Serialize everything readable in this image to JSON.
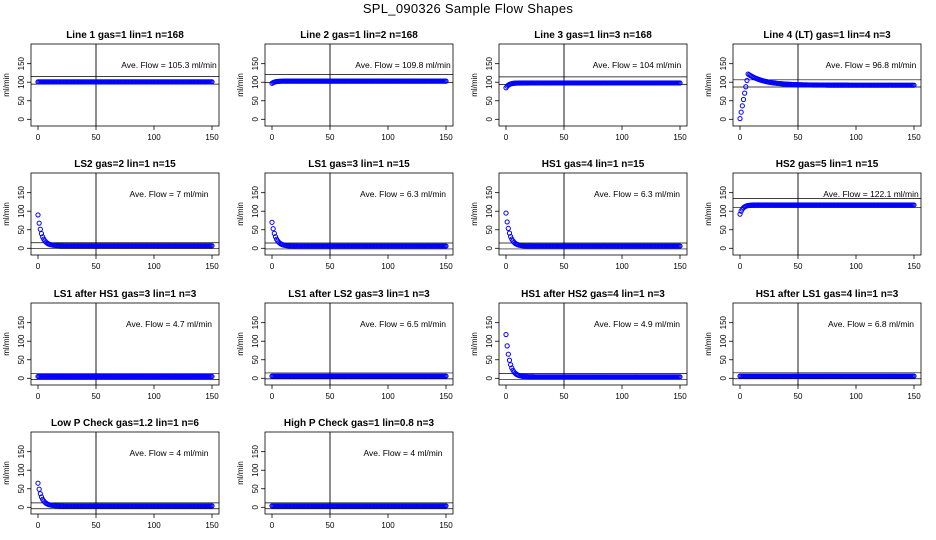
{
  "title": "SPL_090326  Sample Flow Shapes",
  "colors": {
    "points": "#0000ff",
    "axes": "#000000",
    "background": "#ffffff"
  },
  "chart_data": [
    {
      "type": "scatter",
      "title": "Line 1 gas=1 lin=1 n=168",
      "ylabel": "ml/min",
      "annotation": "Ave. Flow =  105.3  ml/min",
      "xlim": [
        0,
        150
      ],
      "ylim": [
        0,
        150
      ],
      "xticks": [
        "0",
        "50",
        "100",
        "150"
      ],
      "yticks": [
        "0",
        "50",
        "100",
        "150"
      ],
      "avg": 105.3,
      "vline": 50,
      "points_x": [
        0,
        150
      ],
      "shape": "flat",
      "y": 101
    },
    {
      "type": "scatter",
      "title": "Line 2 gas=1 lin=2 n=168",
      "ylabel": "ml/min",
      "annotation": "Ave. Flow =  109.8  ml/min",
      "xlim": [
        0,
        150
      ],
      "ylim": [
        0,
        150
      ],
      "xticks": [
        "0",
        "50",
        "100",
        "150"
      ],
      "yticks": [
        "0",
        "50",
        "100",
        "150"
      ],
      "avg": 109.8,
      "vline": 50,
      "points_x": [
        0,
        150
      ],
      "shape": "rise",
      "start": 97,
      "y": 103
    },
    {
      "type": "scatter",
      "title": "Line 3 gas=1 lin=3 n=168",
      "ylabel": "ml/min",
      "annotation": "Ave. Flow =  104  ml/min",
      "xlim": [
        0,
        150
      ],
      "ylim": [
        0,
        150
      ],
      "xticks": [
        "0",
        "50",
        "100",
        "150"
      ],
      "yticks": [
        "0",
        "50",
        "100",
        "150"
      ],
      "avg": 104,
      "vline": 50,
      "points_x": [
        0,
        150
      ],
      "shape": "rise",
      "start": 85,
      "y": 98
    },
    {
      "type": "scatter",
      "title": "Line 4 (LT) gas=1 lin=4 n=3",
      "ylabel": "ml/min",
      "annotation": "Ave. Flow =  96.8  ml/min",
      "xlim": [
        0,
        150
      ],
      "ylim": [
        0,
        150
      ],
      "xticks": [
        "0",
        "50",
        "100",
        "150"
      ],
      "yticks": [
        "0",
        "50",
        "100",
        "150"
      ],
      "avg": 96.8,
      "vline": 50,
      "points_x": [
        0,
        150
      ],
      "shape": "overshoot",
      "start": 2,
      "peak": 122,
      "y": 92
    },
    {
      "type": "scatter",
      "title": "LS2 gas=2 lin=1 n=15",
      "ylabel": "ml/min",
      "annotation": "Ave. Flow =  7  ml/min",
      "xlim": [
        0,
        150
      ],
      "ylim": [
        0,
        150
      ],
      "xticks": [
        "0",
        "50",
        "100",
        "150"
      ],
      "yticks": [
        "0",
        "50",
        "100",
        "150"
      ],
      "avg": 7,
      "vline": 50,
      "points_x": [
        0,
        150
      ],
      "shape": "decay",
      "start": 90,
      "y": 7
    },
    {
      "type": "scatter",
      "title": "LS1 gas=3 lin=1 n=15",
      "ylabel": "ml/min",
      "annotation": "Ave. Flow =  6.3  ml/min",
      "xlim": [
        0,
        150
      ],
      "ylim": [
        0,
        150
      ],
      "xticks": [
        "0",
        "50",
        "100",
        "150"
      ],
      "yticks": [
        "0",
        "50",
        "100",
        "150"
      ],
      "avg": 6.3,
      "vline": 50,
      "points_x": [
        0,
        150
      ],
      "shape": "decay",
      "start": 70,
      "y": 6
    },
    {
      "type": "scatter",
      "title": "HS1 gas=4 lin=1 n=15",
      "ylabel": "ml/min",
      "annotation": "Ave. Flow =  6.3  ml/min",
      "xlim": [
        0,
        150
      ],
      "ylim": [
        0,
        150
      ],
      "xticks": [
        "0",
        "50",
        "100",
        "150"
      ],
      "yticks": [
        "0",
        "50",
        "100",
        "150"
      ],
      "avg": 6.3,
      "vline": 50,
      "points_x": [
        0,
        150
      ],
      "shape": "decay",
      "start": 95,
      "y": 6
    },
    {
      "type": "scatter",
      "title": "HS2 gas=5 lin=1 n=15",
      "ylabel": "ml/min",
      "annotation": "Ave. Flow =  122.1  ml/min",
      "xlim": [
        0,
        150
      ],
      "ylim": [
        0,
        150
      ],
      "xticks": [
        "0",
        "50",
        "100",
        "150"
      ],
      "yticks": [
        "0",
        "50",
        "100",
        "150"
      ],
      "avg": 122.1,
      "vline": 50,
      "points_x": [
        0,
        150
      ],
      "shape": "rise",
      "start": 92,
      "y": 117
    },
    {
      "type": "scatter",
      "title": "LS1 after HS1 gas=3 lin=1 n=3",
      "ylabel": "ml/min",
      "annotation": "Ave. Flow =  4.7  ml/min",
      "xlim": [
        0,
        150
      ],
      "ylim": [
        0,
        150
      ],
      "xticks": [
        "0",
        "50",
        "100",
        "150"
      ],
      "yticks": [
        "0",
        "50",
        "100",
        "150"
      ],
      "avg": 4.7,
      "vline": 50,
      "points_x": [
        0,
        150
      ],
      "shape": "flat",
      "y": 5
    },
    {
      "type": "scatter",
      "title": "LS1 after LS2 gas=3 lin=1 n=3",
      "ylabel": "ml/min",
      "annotation": "Ave. Flow =  6.5  ml/min",
      "xlim": [
        0,
        150
      ],
      "ylim": [
        0,
        150
      ],
      "xticks": [
        "0",
        "50",
        "100",
        "150"
      ],
      "yticks": [
        "0",
        "50",
        "100",
        "150"
      ],
      "avg": 6.5,
      "vline": 50,
      "points_x": [
        0,
        150
      ],
      "shape": "flat",
      "y": 6
    },
    {
      "type": "scatter",
      "title": "HS1 after HS2 gas=4 lin=1 n=3",
      "ylabel": "ml/min",
      "annotation": "Ave. Flow =  4.9  ml/min",
      "xlim": [
        0,
        150
      ],
      "ylim": [
        0,
        150
      ],
      "xticks": [
        "0",
        "50",
        "100",
        "150"
      ],
      "yticks": [
        "0",
        "50",
        "100",
        "150"
      ],
      "avg": 4.9,
      "vline": 50,
      "points_x": [
        0,
        150
      ],
      "shape": "decay",
      "start": 118,
      "y": 4
    },
    {
      "type": "scatter",
      "title": "HS1 after LS1 gas=4 lin=1 n=3",
      "ylabel": "ml/min",
      "annotation": "Ave. Flow =  6.8  ml/min",
      "xlim": [
        0,
        150
      ],
      "ylim": [
        0,
        150
      ],
      "xticks": [
        "0",
        "50",
        "100",
        "150"
      ],
      "yticks": [
        "0",
        "50",
        "100",
        "150"
      ],
      "avg": 6.8,
      "vline": 50,
      "points_x": [
        0,
        150
      ],
      "shape": "flat",
      "y": 6
    },
    {
      "type": "scatter",
      "title": "Low P Check gas=1.2 lin=1 n=6",
      "ylabel": "ml/min",
      "annotation": "Ave. Flow =  4  ml/min",
      "xlim": [
        0,
        150
      ],
      "ylim": [
        0,
        150
      ],
      "xticks": [
        "0",
        "50",
        "100",
        "150"
      ],
      "yticks": [
        "0",
        "50",
        "100",
        "150"
      ],
      "avg": 4,
      "vline": 50,
      "points_x": [
        0,
        150
      ],
      "shape": "decay",
      "start": 65,
      "y": 4
    },
    {
      "type": "scatter",
      "title": "High P Check gas=1 lin=0.8 n=3",
      "ylabel": "ml/min",
      "annotation": "Ave. Flow =  4  ml/min",
      "xlim": [
        0,
        150
      ],
      "ylim": [
        0,
        150
      ],
      "xticks": [
        "0",
        "50",
        "100",
        "150"
      ],
      "yticks": [
        "0",
        "50",
        "100",
        "150"
      ],
      "avg": 4,
      "vline": 50,
      "points_x": [
        0,
        150
      ],
      "shape": "flat",
      "y": 4
    }
  ]
}
